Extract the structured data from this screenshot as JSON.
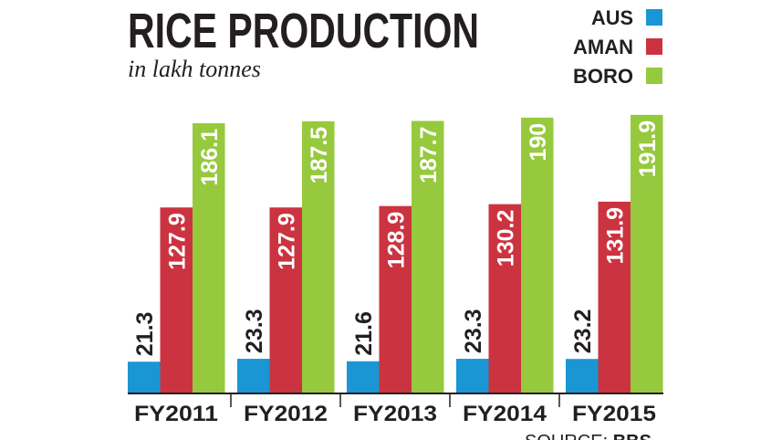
{
  "chart_data": {
    "type": "bar",
    "title": "RICE PRODUCTION",
    "subtitle": "in lakh tonnes",
    "categories": [
      "FY2011",
      "FY2012",
      "FY2013",
      "FY2014",
      "FY2015"
    ],
    "series": [
      {
        "name": "AUS",
        "color": "#1a96d4",
        "values": [
          21.3,
          23.3,
          21.6,
          23.3,
          23.2
        ]
      },
      {
        "name": "AMAN",
        "color": "#cc3340",
        "values": [
          127.9,
          127.9,
          128.9,
          130.2,
          131.9
        ]
      },
      {
        "name": "BORO",
        "color": "#96c93d",
        "values": [
          186.1,
          187.5,
          187.7,
          190,
          191.9
        ]
      }
    ],
    "source_label": "SOURCE:",
    "source_name": "BBS"
  }
}
